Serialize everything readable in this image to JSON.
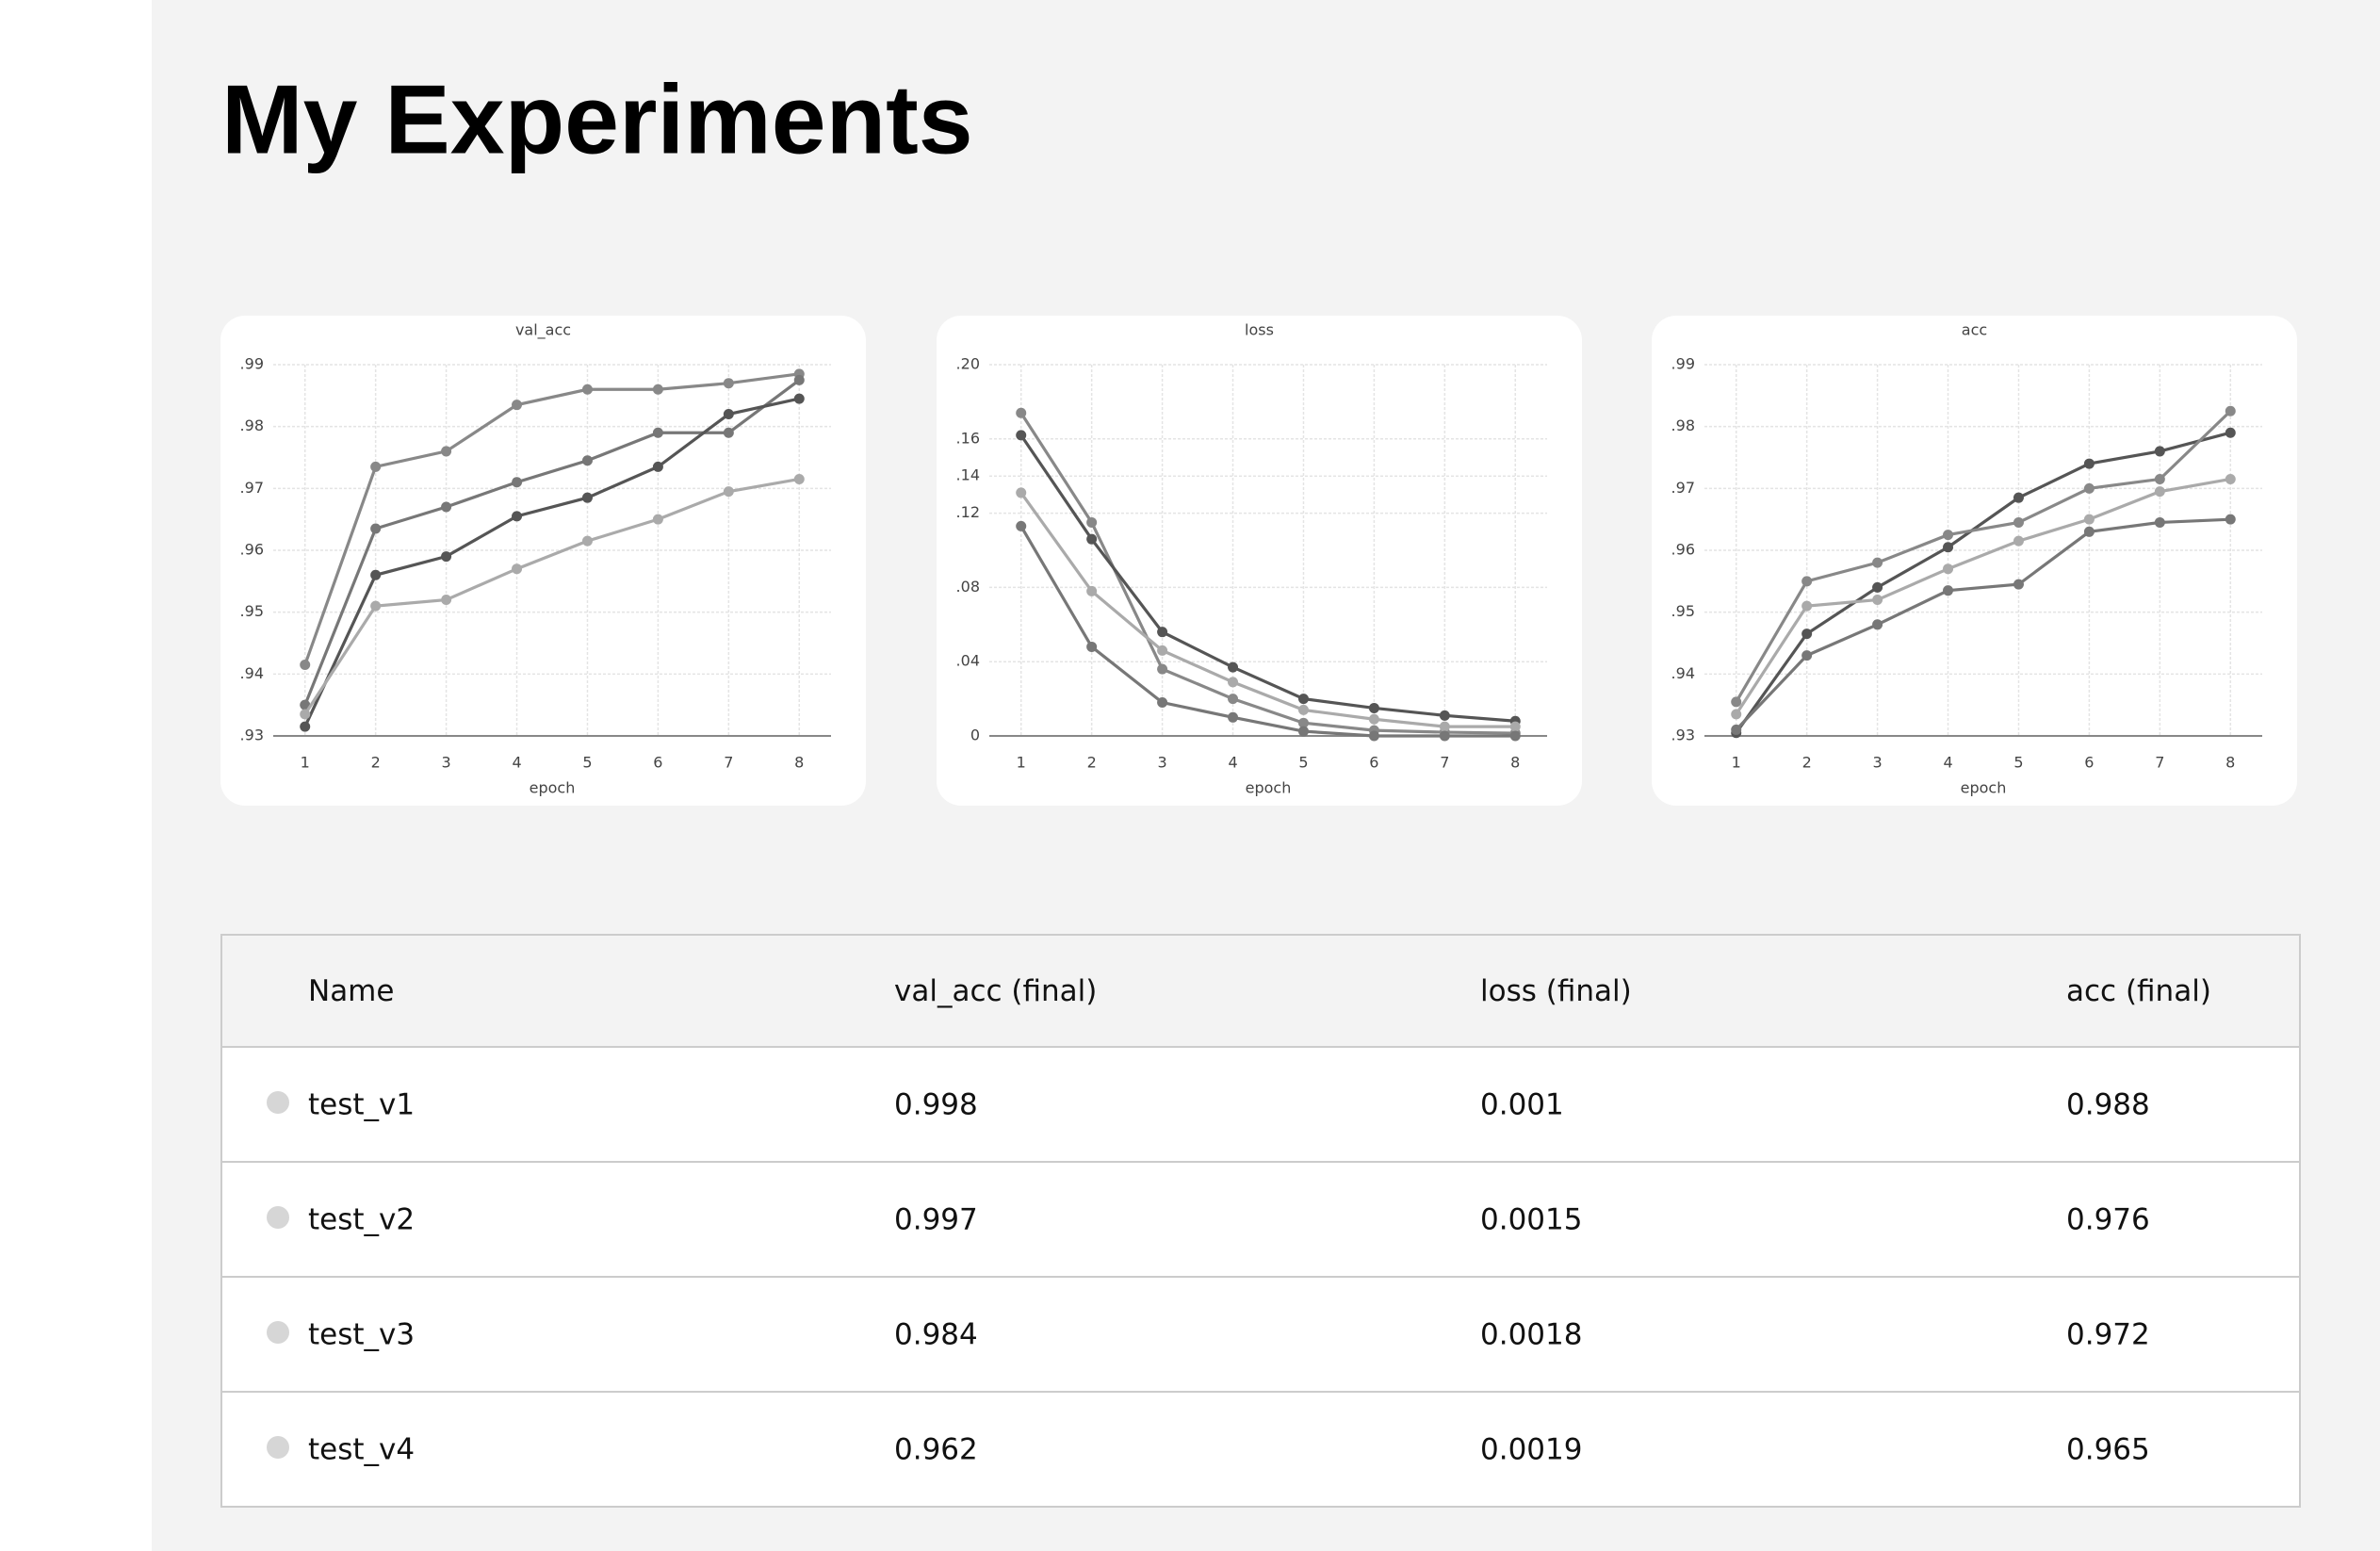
{
  "header": {
    "title": "My Experiments"
  },
  "chart_data": [
    {
      "type": "line",
      "title": "val_acc",
      "xlabel": "epoch",
      "x": [
        1,
        2,
        3,
        4,
        5,
        6,
        7,
        8
      ],
      "xlim": [
        0.55,
        8.45
      ],
      "xticks": [
        1,
        2,
        3,
        4,
        5,
        6,
        7,
        8
      ],
      "ylim": [
        0.93,
        0.99
      ],
      "yticks": [
        {
          "value": 0.93,
          "label": ".93"
        },
        {
          "value": 0.94,
          "label": ".94"
        },
        {
          "value": 0.95,
          "label": ".95"
        },
        {
          "value": 0.96,
          "label": ".96"
        },
        {
          "value": 0.97,
          "label": ".97"
        },
        {
          "value": 0.98,
          "label": ".98"
        },
        {
          "value": 0.99,
          "label": ".99"
        }
      ],
      "grid": true,
      "series": [
        {
          "color": "#888888",
          "values": [
            0.9415,
            0.9735,
            0.976,
            0.9835,
            0.986,
            0.986,
            0.987,
            0.9885
          ]
        },
        {
          "color": "#777777",
          "values": [
            0.935,
            0.9635,
            0.967,
            0.971,
            0.9745,
            0.979,
            0.979,
            0.9875
          ]
        },
        {
          "color": "#555555",
          "values": [
            0.9315,
            0.956,
            0.959,
            0.9655,
            0.9685,
            0.9735,
            0.982,
            0.9845
          ]
        },
        {
          "color": "#aaaaaa",
          "values": [
            0.9335,
            0.951,
            0.952,
            0.957,
            0.9615,
            0.965,
            0.9695,
            0.9715
          ]
        }
      ]
    },
    {
      "type": "line",
      "title": "loss",
      "xlabel": "epoch",
      "x": [
        1,
        2,
        3,
        4,
        5,
        6,
        7,
        8
      ],
      "xlim": [
        0.55,
        8.45
      ],
      "xticks": [
        1,
        2,
        3,
        4,
        5,
        6,
        7,
        8
      ],
      "ylim": [
        0,
        0.2
      ],
      "yticks": [
        0,
        {
          "value": 0.04,
          "label": ".04"
        },
        {
          "value": 0.08,
          "label": ".08"
        },
        {
          "value": 0.12,
          "label": ".12"
        },
        {
          "value": 0.14,
          "label": ".14"
        },
        {
          "value": 0.16,
          "label": ".16"
        },
        {
          "value": 0.2,
          "label": ".20"
        }
      ],
      "grid": true,
      "series": [
        {
          "color": "#888888",
          "values": [
            0.174,
            0.115,
            0.036,
            0.02,
            0.007,
            0.003,
            0.002,
            0.0015
          ]
        },
        {
          "color": "#555555",
          "values": [
            0.162,
            0.106,
            0.056,
            0.037,
            0.02,
            0.015,
            0.011,
            0.008
          ]
        },
        {
          "color": "#aaaaaa",
          "values": [
            0.131,
            0.078,
            0.046,
            0.029,
            0.014,
            0.009,
            0.005,
            0.005
          ]
        },
        {
          "color": "#777777",
          "values": [
            0.113,
            0.048,
            0.018,
            0.01,
            0.0025,
            0,
            0,
            0
          ]
        }
      ]
    },
    {
      "type": "line",
      "title": "acc",
      "xlabel": "epoch",
      "x": [
        1,
        2,
        3,
        4,
        5,
        6,
        7,
        8
      ],
      "xlim": [
        0.55,
        8.45
      ],
      "xticks": [
        1,
        2,
        3,
        4,
        5,
        6,
        7,
        8
      ],
      "ylim": [
        0.93,
        0.99
      ],
      "yticks": [
        {
          "value": 0.93,
          "label": ".93"
        },
        {
          "value": 0.94,
          "label": ".94"
        },
        {
          "value": 0.95,
          "label": ".95"
        },
        {
          "value": 0.96,
          "label": ".96"
        },
        {
          "value": 0.97,
          "label": ".97"
        },
        {
          "value": 0.98,
          "label": ".98"
        },
        {
          "value": 0.99,
          "label": ".99"
        }
      ],
      "grid": true,
      "series": [
        {
          "color": "#555555",
          "values": [
            0.9305,
            0.9465,
            0.954,
            0.9605,
            0.9685,
            0.974,
            0.976,
            0.979
          ]
        },
        {
          "color": "#888888",
          "values": [
            0.9355,
            0.955,
            0.958,
            0.9625,
            0.9645,
            0.97,
            0.9715,
            0.9825
          ]
        },
        {
          "color": "#aaaaaa",
          "values": [
            0.9335,
            0.951,
            0.952,
            0.957,
            0.9615,
            0.965,
            0.9695,
            0.9715
          ]
        },
        {
          "color": "#777777",
          "values": [
            0.931,
            0.943,
            0.948,
            0.9535,
            0.9545,
            0.963,
            0.9645,
            0.965
          ]
        }
      ]
    }
  ],
  "table": {
    "columns": [
      "Name",
      "val_acc (final)",
      "loss (final)",
      "acc (final)"
    ],
    "rows": [
      [
        "test_v1",
        "0.998",
        "0.001",
        "0.988"
      ],
      [
        "test_v2",
        "0.997",
        "0.0015",
        "0.976"
      ],
      [
        "test_v3",
        "0.984",
        "0.0018",
        "0.972"
      ],
      [
        "test_v4",
        "0.962",
        "0.0019",
        "0.965"
      ]
    ]
  }
}
